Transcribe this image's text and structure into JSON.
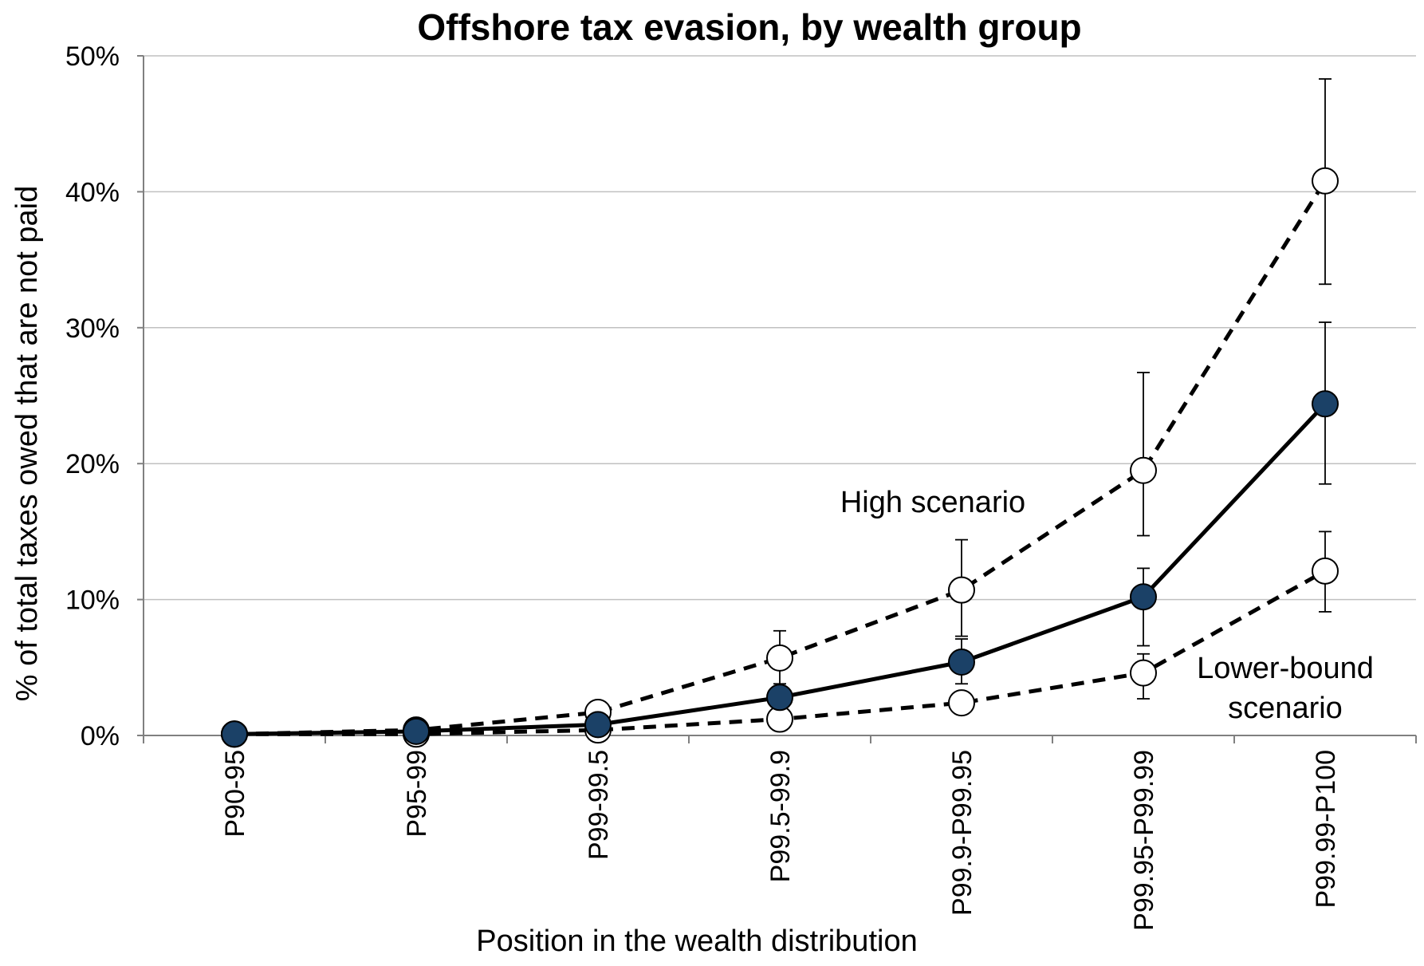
{
  "chart_data": {
    "type": "line",
    "title": "Offshore tax evasion, by wealth group",
    "xlabel": "Position in the wealth distribution",
    "ylabel": "% of total taxes owed that are not paid",
    "categories": [
      "P90-95",
      "P95-99",
      "P99-99.5",
      "P99.5-99.9",
      "P99.9-P99.95",
      "P99.95-P99.99",
      "P99.99-P100"
    ],
    "ylim": [
      0,
      50
    ],
    "yticks": [
      0,
      10,
      20,
      30,
      40,
      50
    ],
    "ytick_labels": [
      "0%",
      "10%",
      "20%",
      "30%",
      "40%",
      "50%"
    ],
    "grid": "horizontal",
    "series": [
      {
        "key": "high",
        "style": "dashed",
        "marker": "open-circle",
        "values": [
          0.1,
          0.4,
          1.7,
          5.7,
          10.7,
          19.5,
          40.8
        ],
        "error_low": [
          null,
          null,
          null,
          3.8,
          7.3,
          14.7,
          33.2
        ],
        "error_high": [
          null,
          null,
          null,
          7.7,
          14.4,
          26.7,
          48.3
        ]
      },
      {
        "key": "central",
        "style": "solid",
        "marker": "filled-circle",
        "values": [
          0.1,
          0.3,
          0.8,
          2.8,
          5.4,
          10.2,
          24.4
        ],
        "error_low": [
          null,
          null,
          null,
          null,
          3.8,
          6.6,
          18.5
        ],
        "error_high": [
          null,
          null,
          null,
          null,
          7.1,
          12.3,
          30.4
        ]
      },
      {
        "key": "lower",
        "style": "dashed",
        "marker": "open-circle",
        "values": [
          0.1,
          0.1,
          0.4,
          1.2,
          2.4,
          4.6,
          12.1
        ],
        "error_low": [
          null,
          null,
          null,
          null,
          null,
          2.7,
          9.1
        ],
        "error_high": [
          null,
          null,
          null,
          null,
          null,
          6.0,
          15.0
        ]
      }
    ],
    "annotations": [
      {
        "key": "high",
        "lines": [
          "High scenario"
        ]
      },
      {
        "key": "lower",
        "lines": [
          "Lower-bound",
          "scenario"
        ]
      }
    ],
    "colors": {
      "filled_marker": "#1b4167",
      "line": "#000000",
      "grid": "#c0c0c0",
      "axis": "#808080"
    }
  }
}
